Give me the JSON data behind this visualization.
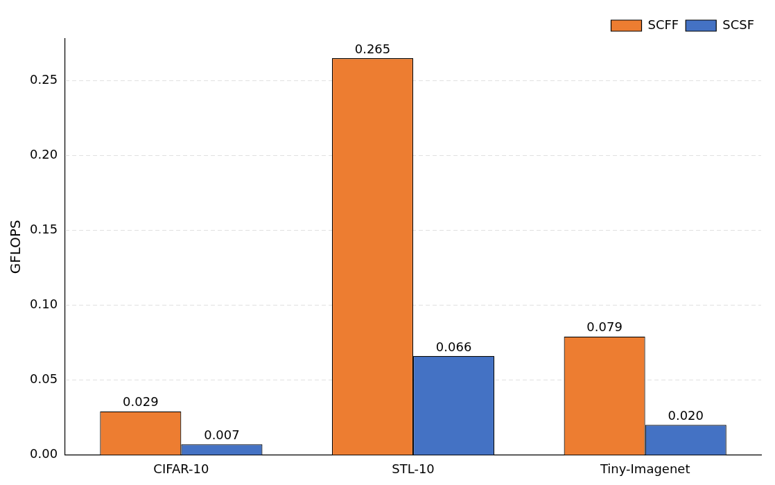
{
  "chart_data": {
    "type": "bar",
    "ylabel": "GFLOPS",
    "categories": [
      "CIFAR-10",
      "STL-10",
      "Tiny-Imagenet"
    ],
    "series": [
      {
        "name": "SCFF",
        "color": "#ed7d31",
        "values": [
          0.029,
          0.265,
          0.079
        ],
        "value_labels": [
          "0.029",
          "0.265",
          "0.079"
        ]
      },
      {
        "name": "SCSF",
        "color": "#4472c4",
        "values": [
          0.007,
          0.066,
          0.02
        ],
        "value_labels": [
          "0.007",
          "0.066",
          "0.020"
        ]
      }
    ],
    "ylim": [
      0,
      0.278
    ],
    "yticks": [
      {
        "value": 0,
        "label": "0.00"
      },
      {
        "value": 0.05,
        "label": "0.05"
      },
      {
        "value": 0.1,
        "label": "0.10"
      },
      {
        "value": 0.15,
        "label": "0.15"
      },
      {
        "value": 0.2,
        "label": "0.20"
      },
      {
        "value": 0.25,
        "label": "0.25"
      }
    ],
    "grid": "y",
    "legend": "top right"
  }
}
